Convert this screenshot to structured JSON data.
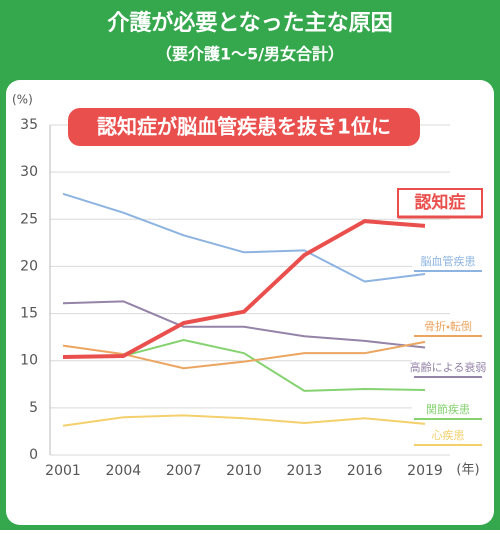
{
  "chart_data": {
    "type": "line",
    "title": "介護が必要となった主な原因",
    "subtitle": "（要介護1～5/男女合計）",
    "annotation": "認知症が脳血管疾患を抜き1位に",
    "y_unit": "(%)",
    "x_unit": "(年)",
    "categories": [
      "2001",
      "2004",
      "2007",
      "2010",
      "2013",
      "2016",
      "2019"
    ],
    "ylim": [
      0,
      35
    ],
    "yticks": [
      0,
      5,
      10,
      15,
      20,
      25,
      30,
      35
    ],
    "grid": true,
    "series": [
      {
        "name": "認知症",
        "color": "#e9504d",
        "values": [
          10.4,
          10.5,
          14.0,
          15.2,
          21.2,
          24.8,
          24.3
        ]
      },
      {
        "name": "脳血管疾患",
        "color": "#8db4e0",
        "values": [
          27.7,
          25.7,
          23.3,
          21.5,
          21.7,
          18.4,
          19.2
        ]
      },
      {
        "name": "骨折・転倒",
        "color": "#eba561",
        "values": [
          11.6,
          10.7,
          9.2,
          9.9,
          10.8,
          10.8,
          12.0
        ]
      },
      {
        "name": "高齢による衰弱",
        "color": "#9583a8",
        "values": [
          16.1,
          16.3,
          13.6,
          13.6,
          12.6,
          12.1,
          11.4
        ]
      },
      {
        "name": "関節疾患",
        "color": "#85d270",
        "values": [
          10.4,
          10.5,
          12.2,
          10.8,
          6.8,
          7.0,
          6.9
        ]
      },
      {
        "name": "心疾患",
        "color": "#f4d06c",
        "values": [
          3.1,
          4.0,
          4.2,
          3.9,
          3.4,
          3.9,
          3.3
        ]
      }
    ]
  }
}
